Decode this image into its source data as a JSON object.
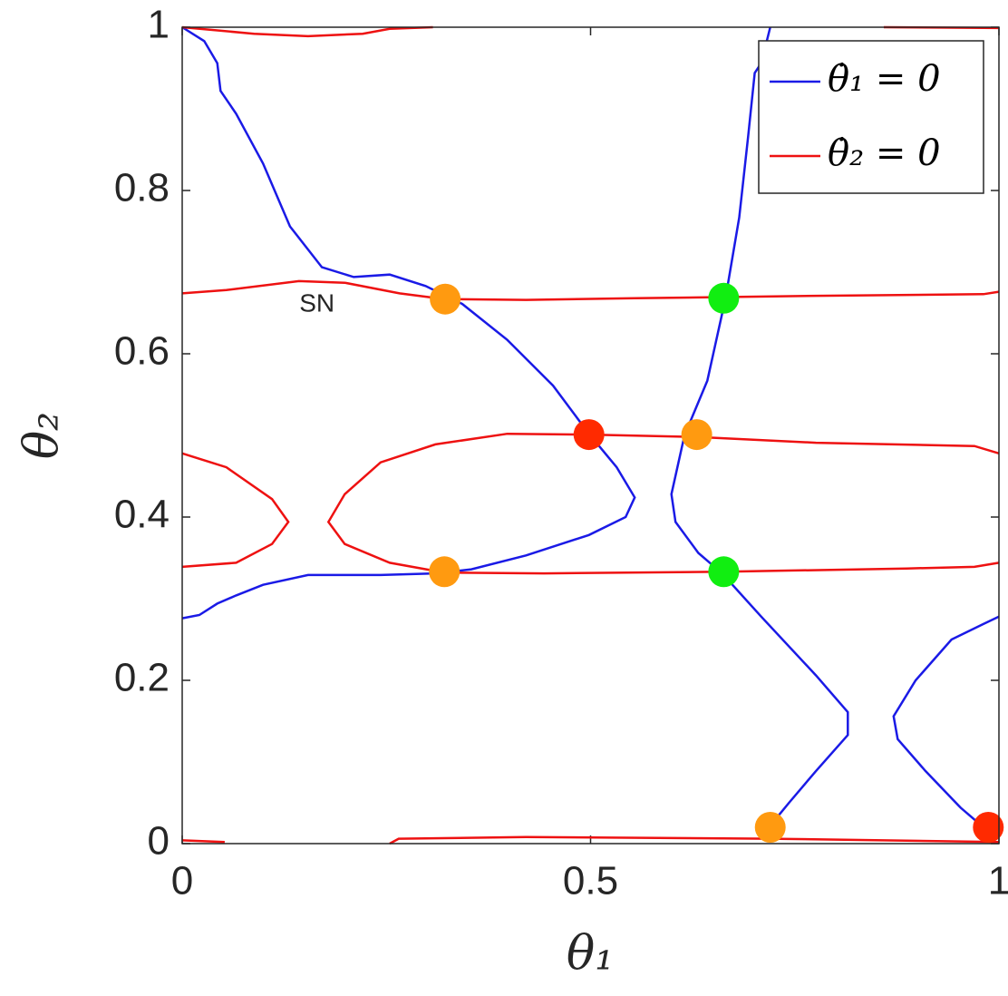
{
  "chart_data": {
    "type": "line",
    "xlabel": "θ₁",
    "ylabel": "θ₂",
    "xlim": [
      0,
      1
    ],
    "ylim": [
      0,
      1
    ],
    "xticks": [
      0,
      0.5,
      1
    ],
    "yticks": [
      0,
      0.2,
      0.4,
      0.6,
      0.8,
      1
    ],
    "grid": false,
    "legend": "upper right",
    "annotation": "SN",
    "annotation_x": 0.165,
    "annotation_y": 0.66,
    "series": [
      {
        "name": "θ̇₁ = 0",
        "color": "#1a1ae6",
        "x": [
          0,
          0.027,
          0.043,
          0.047,
          0.066,
          0.099,
          0.132,
          0.171,
          0.21,
          0.254,
          0.298,
          0.343,
          0.398,
          0.454,
          0.498,
          0.532,
          0.554,
          0.543,
          0.498,
          0.421,
          0.354,
          0.31,
          0.243,
          0.154,
          0.099,
          0.066,
          0.043,
          0.021,
          0,
          null,
          0.72,
          0.709,
          0.701,
          0.693,
          0.682,
          0.665,
          0.643,
          0.615,
          0.599,
          0.604,
          0.632,
          0.661,
          0.709,
          0.776,
          0.815,
          0.815,
          0.776,
          0.743,
          0.72,
          null,
          1,
          0.981,
          0.942,
          0.898,
          0.871,
          0.876,
          0.91,
          0.953,
          0.981
        ],
        "y": [
          1,
          0.983,
          0.956,
          0.922,
          0.894,
          0.833,
          0.756,
          0.706,
          0.694,
          0.697,
          0.683,
          0.661,
          0.617,
          0.561,
          0.502,
          0.461,
          0.424,
          0.4,
          0.378,
          0.353,
          0.336,
          0.331,
          0.329,
          0.329,
          0.317,
          0.304,
          0.294,
          0.28,
          0.276,
          null,
          1,
          0.956,
          0.944,
          0.867,
          0.767,
          0.667,
          0.567,
          0.5,
          0.428,
          0.394,
          0.356,
          0.331,
          0.278,
          0.206,
          0.161,
          0.133,
          0.089,
          0.05,
          0.022,
          null,
          0.278,
          0.269,
          0.25,
          0.2,
          0.156,
          0.128,
          0.089,
          0.044,
          0.02
        ]
      },
      {
        "name": "θ̇₂ = 0",
        "color": "#ee1111",
        "x": [
          0,
          0.088,
          0.154,
          0.221,
          0.254,
          0.307,
          null,
          0.859,
          1,
          null,
          0,
          0.054,
          0.143,
          0.199,
          0.266,
          0.321,
          0.421,
          0.554,
          0.776,
          0.981,
          1,
          null,
          0,
          0.054,
          0.11,
          0.13,
          0.11,
          0.066,
          0,
          null,
          1,
          0.97,
          0.776,
          0.631,
          0.498,
          0.398,
          0.31,
          0.243,
          0.199,
          0.179,
          0.199,
          0.254,
          0.321,
          0.443,
          0.665,
          0.887,
          0.97,
          1,
          null,
          0,
          0.052,
          null,
          0.254,
          0.265,
          0.421,
          0.72,
          1
        ],
        "y": [
          1,
          0.992,
          0.989,
          0.992,
          0.998,
          1,
          null,
          1,
          0.999,
          null,
          0.674,
          0.678,
          0.689,
          0.687,
          0.674,
          0.667,
          0.666,
          0.668,
          0.671,
          0.673,
          0.676,
          null,
          0.478,
          0.461,
          0.422,
          0.394,
          0.367,
          0.344,
          0.339,
          null,
          0.478,
          0.487,
          0.491,
          0.498,
          0.501,
          0.502,
          0.489,
          0.467,
          0.428,
          0.394,
          0.367,
          0.344,
          0.332,
          0.331,
          0.333,
          0.337,
          0.339,
          0.344,
          null,
          0.004,
          0.002,
          null,
          0,
          0.006,
          0.008,
          0.006,
          0.002
        ]
      }
    ],
    "points": {
      "x": [
        0.322,
        0.663,
        0.498,
        0.63,
        0.321,
        0.663,
        0.72,
        0.987
      ],
      "y": [
        0.667,
        0.668,
        0.501,
        0.501,
        0.333,
        0.333,
        0.02,
        0.02
      ],
      "colors": [
        "#ff9a10",
        "#11ee11",
        "#ff2a00",
        "#ff9a10",
        "#ff9a10",
        "#11ee11",
        "#ff9a10",
        "#ff2a00"
      ]
    }
  }
}
